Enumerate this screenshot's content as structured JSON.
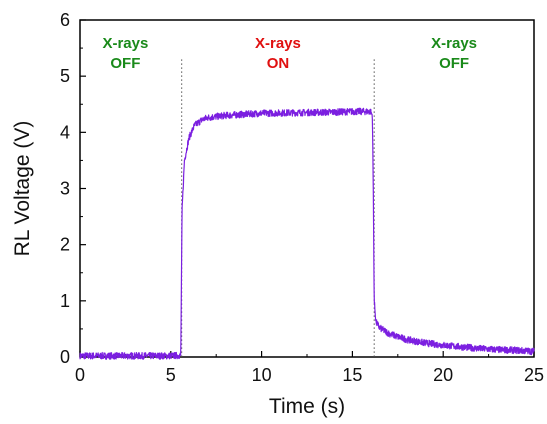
{
  "chart_data": {
    "type": "line",
    "xlabel": "Time (s)",
    "ylabel": "RL Voltage (V)",
    "xlim": [
      0,
      25
    ],
    "ylim": [
      0,
      6
    ],
    "x_ticks": [
      "0",
      "5",
      "10",
      "15",
      "20",
      "25"
    ],
    "y_ticks": [
      "0",
      "1",
      "2",
      "3",
      "4",
      "5",
      "6"
    ],
    "grid": false,
    "series": [
      {
        "color": "#7b1fe0",
        "x": [
          0,
          5.0,
          5.55,
          5.62,
          5.75,
          6.0,
          6.3,
          6.7,
          7.0,
          8.0,
          9.0,
          10.0,
          12.0,
          14.0,
          15.0,
          16.0,
          16.1,
          16.15,
          16.2,
          16.3,
          16.5,
          17.0,
          17.5,
          18.0,
          19.0,
          20.0,
          21.0,
          22.0,
          23.0,
          24.0,
          25.0
        ],
        "y": [
          0.02,
          0.02,
          0.03,
          2.6,
          3.5,
          3.9,
          4.12,
          4.22,
          4.26,
          4.3,
          4.32,
          4.34,
          4.35,
          4.36,
          4.37,
          4.37,
          4.3,
          3.0,
          1.0,
          0.62,
          0.52,
          0.42,
          0.36,
          0.31,
          0.25,
          0.21,
          0.18,
          0.15,
          0.13,
          0.12,
          0.1
        ],
        "noise_amplitude": 0.06
      }
    ],
    "markers": [
      {
        "x": 5.6,
        "style": "dotted"
      },
      {
        "x": 16.2,
        "style": "dotted"
      }
    ],
    "annotations": [
      {
        "line1": "X-rays",
        "line2": "OFF",
        "color": "#1a8a1a",
        "x": 2.5,
        "y": 5.5
      },
      {
        "line1": "X-rays",
        "line2": "ON",
        "color": "#e01010",
        "x": 10.9,
        "y": 5.5
      },
      {
        "line1": "X-rays",
        "line2": "OFF",
        "color": "#1a8a1a",
        "x": 20.6,
        "y": 5.5
      }
    ]
  }
}
